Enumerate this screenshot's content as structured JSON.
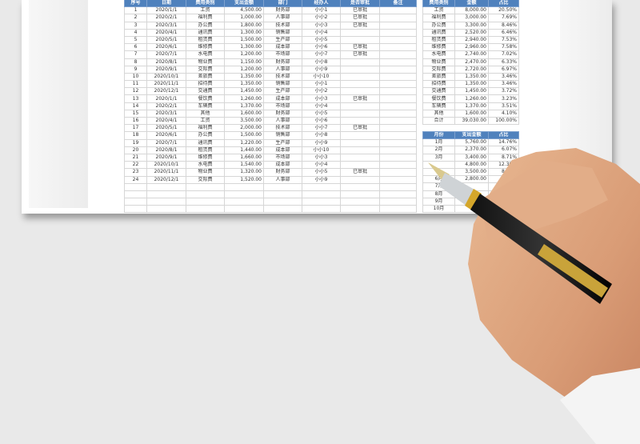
{
  "main_table": {
    "headers": [
      "序号",
      "日期",
      "费用类别",
      "支出金额",
      "部门",
      "经办人",
      "是否审批",
      "备注"
    ],
    "rows": [
      [
        "1",
        "2020/1/1",
        "工资",
        "4,500.00",
        "财务部",
        "小小1",
        "已审批",
        ""
      ],
      [
        "2",
        "2020/2/1",
        "福利费",
        "1,000.00",
        "人事部",
        "小小2",
        "已审批",
        ""
      ],
      [
        "3",
        "2020/3/1",
        "办公费",
        "1,800.00",
        "技术部",
        "小小3",
        "已审批",
        ""
      ],
      [
        "4",
        "2020/4/1",
        "通讯费",
        "1,300.00",
        "销售部",
        "小小4",
        "",
        ""
      ],
      [
        "5",
        "2020/5/1",
        "租赁费",
        "1,500.00",
        "生产部",
        "小小5",
        "",
        ""
      ],
      [
        "6",
        "2020/6/1",
        "维修费",
        "1,300.00",
        "成本部",
        "小小6",
        "已审批",
        ""
      ],
      [
        "7",
        "2020/7/1",
        "水电费",
        "1,200.00",
        "市场部",
        "小小7",
        "已审批",
        ""
      ],
      [
        "8",
        "2020/8/1",
        "物业费",
        "1,150.00",
        "财务部",
        "小小8",
        "",
        ""
      ],
      [
        "9",
        "2020/9/1",
        "交际费",
        "1,200.00",
        "人事部",
        "小小9",
        "",
        ""
      ],
      [
        "10",
        "2020/10/1",
        "差旅费",
        "1,350.00",
        "技术部",
        "小小10",
        "",
        ""
      ],
      [
        "11",
        "2020/11/1",
        "招待费",
        "1,350.00",
        "销售部",
        "小小1",
        "",
        ""
      ],
      [
        "12",
        "2020/12/1",
        "交通费",
        "1,450.00",
        "生产部",
        "小小2",
        "",
        ""
      ],
      [
        "13",
        "2020/1/1",
        "餐饮费",
        "1,260.00",
        "成本部",
        "小小3",
        "已审批",
        ""
      ],
      [
        "14",
        "2020/2/1",
        "车辆费",
        "1,370.00",
        "市场部",
        "小小4",
        "",
        ""
      ],
      [
        "15",
        "2020/3/1",
        "其他",
        "1,600.00",
        "财务部",
        "小小5",
        "",
        ""
      ],
      [
        "16",
        "2020/4/1",
        "工资",
        "3,500.00",
        "人事部",
        "小小6",
        "",
        ""
      ],
      [
        "17",
        "2020/5/1",
        "福利费",
        "2,000.00",
        "技术部",
        "小小7",
        "已审批",
        ""
      ],
      [
        "18",
        "2020/6/1",
        "办公费",
        "1,500.00",
        "销售部",
        "小小8",
        "",
        ""
      ],
      [
        "19",
        "2020/7/1",
        "通讯费",
        "1,220.00",
        "生产部",
        "小小9",
        "",
        ""
      ],
      [
        "20",
        "2020/8/1",
        "租赁费",
        "1,440.00",
        "成本部",
        "小小10",
        "",
        ""
      ],
      [
        "21",
        "2020/9/1",
        "维修费",
        "1,660.00",
        "市场部",
        "小小3",
        "",
        ""
      ],
      [
        "22",
        "2020/10/1",
        "水电费",
        "1,540.00",
        "成本部",
        "小小4",
        "",
        ""
      ],
      [
        "23",
        "2020/11/1",
        "物业费",
        "1,320.00",
        "财务部",
        "小小5",
        "已审批",
        ""
      ],
      [
        "24",
        "2020/12/1",
        "交际费",
        "1,520.00",
        "人事部",
        "小小9",
        "",
        ""
      ]
    ]
  },
  "category_table": {
    "headers": [
      "费用类别",
      "金额",
      "占比"
    ],
    "rows": [
      [
        "工资",
        "8,000.00",
        "20.50%"
      ],
      [
        "福利费",
        "3,000.00",
        "7.69%"
      ],
      [
        "办公费",
        "3,300.00",
        "8.46%"
      ],
      [
        "通讯费",
        "2,520.00",
        "6.46%"
      ],
      [
        "租赁费",
        "2,940.00",
        "7.53%"
      ],
      [
        "维修费",
        "2,960.00",
        "7.58%"
      ],
      [
        "水电费",
        "2,740.00",
        "7.02%"
      ],
      [
        "物业费",
        "2,470.00",
        "6.33%"
      ],
      [
        "交际费",
        "2,720.00",
        "6.97%"
      ],
      [
        "差旅费",
        "1,350.00",
        "3.46%"
      ],
      [
        "招待费",
        "1,350.00",
        "3.46%"
      ],
      [
        "交通费",
        "1,450.00",
        "3.72%"
      ],
      [
        "餐饮费",
        "1,260.00",
        "3.23%"
      ],
      [
        "车辆费",
        "1,370.00",
        "3.51%"
      ],
      [
        "其他",
        "1,600.00",
        "4.10%"
      ],
      [
        "合计",
        "39,030.00",
        "100.00%"
      ]
    ]
  },
  "month_table": {
    "headers": [
      "月份",
      "支出金额",
      "占比"
    ],
    "rows": [
      [
        "1月",
        "5,760.00",
        "14.76%"
      ],
      [
        "2月",
        "2,370.00",
        "6.07%"
      ],
      [
        "3月",
        "3,400.00",
        "8.71%"
      ],
      [
        "",
        "4,800.00",
        "12.30%"
      ],
      [
        "",
        "3,500.00",
        "8.97%"
      ],
      [
        "6月",
        "2,800.00",
        ""
      ],
      [
        "7月",
        "",
        ""
      ],
      [
        "8月",
        "",
        ""
      ],
      [
        "9月",
        "",
        ""
      ],
      [
        "10月",
        "",
        ""
      ]
    ]
  },
  "colors": {
    "header": "#4f81bd",
    "background": "#e9e9e9"
  }
}
